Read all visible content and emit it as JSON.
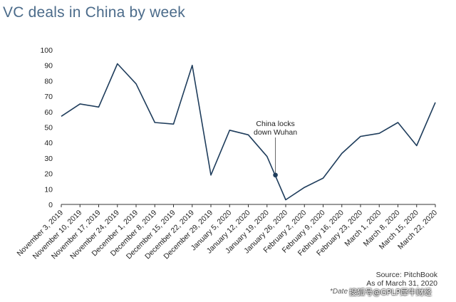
{
  "chart_data": {
    "type": "line",
    "title": "VC deals in China by week",
    "xlabel": "",
    "ylabel": "",
    "ylim": [
      0,
      100
    ],
    "yticks": [
      0,
      10,
      20,
      30,
      40,
      50,
      60,
      70,
      80,
      90,
      100
    ],
    "grid": false,
    "categories": [
      "November 3, 2019",
      "November 10, 2019",
      "November 17, 2019",
      "November 24, 2019",
      "December 1, 2019",
      "December 8, 2019",
      "December 15, 2019",
      "December 22, 2019",
      "December 29, 2019",
      "January 5, 2020",
      "January 12, 2020",
      "January 19, 2020",
      "January 26, 2020",
      "February 2, 2020",
      "February 9, 2020",
      "February 16, 2020",
      "February 23, 2020",
      "March 1, 2020",
      "March 8, 2020",
      "March 15, 2020",
      "March 22, 2020"
    ],
    "series": [
      {
        "values": [
          57,
          65,
          63,
          91,
          78,
          53,
          52,
          90,
          19,
          48,
          45,
          31,
          3,
          11,
          17,
          33,
          44,
          46,
          53,
          38,
          66
        ],
        "color": "#1f3d5c"
      }
    ],
    "annotation": {
      "text_lines": [
        "China locks",
        "down Wuhan"
      ],
      "x_position": 11.45,
      "y_value": 19
    }
  },
  "source_line": "Source: PitchBook",
  "date_line": "As of March 31, 2020",
  "note_text": "*Date",
  "watermark": "搜狐号@GPLP犀牛财经"
}
